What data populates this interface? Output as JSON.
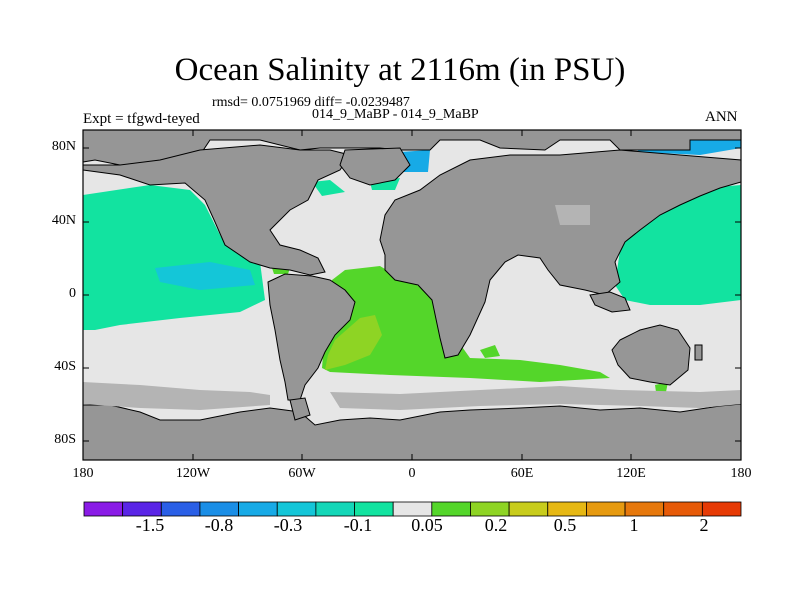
{
  "header": {
    "title": "Ocean Salinity at 2116m (in PSU)",
    "stats": "rmsd= 0.0751969 diff= -0.0239487",
    "cases": "014_9_MaBP - 014_9_MaBP",
    "expt": "Expt = tfgwd-teyed",
    "season": "ANN"
  },
  "axes": {
    "y_ticks": [
      "80N",
      "40N",
      "0",
      "40S",
      "80S"
    ],
    "x_ticks": [
      "180",
      "120W",
      "60W",
      "0",
      "60E",
      "120E",
      "180"
    ]
  },
  "colorbar": {
    "colors": [
      "#8a1be6",
      "#5a25e6",
      "#2a5fe6",
      "#1a8ee6",
      "#17aae6",
      "#14c6d8",
      "#14d7b8",
      "#12e3a0",
      "#e6e6e6",
      "#54d62a",
      "#8ed424",
      "#c8cc1c",
      "#e6b814",
      "#e69a10",
      "#e6780c",
      "#e65a08",
      "#e63a05"
    ],
    "labels": [
      "-1.5",
      "-0.8",
      "-0.3",
      "-0.1",
      "0.05",
      "0.2",
      "0.5",
      "1",
      "2"
    ]
  },
  "map_colors": {
    "land": "#969696",
    "neutral": "#e6e6e6",
    "teal": "#12e3a0",
    "cyan": "#14c6d8",
    "blue": "#17aae6",
    "green": "#54d62a",
    "yellowgreen": "#8ed424"
  }
}
